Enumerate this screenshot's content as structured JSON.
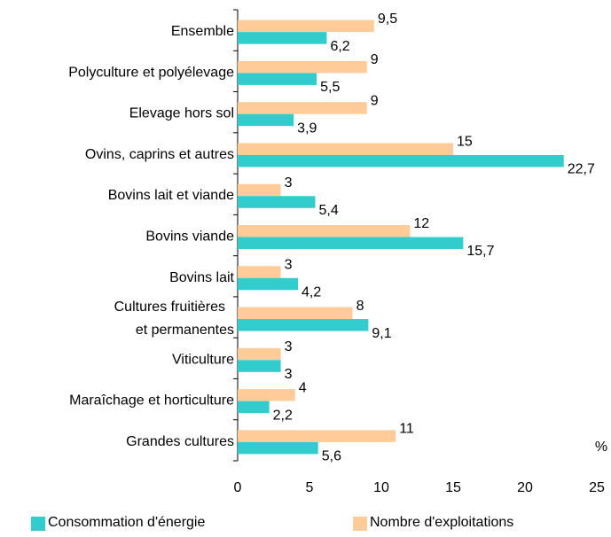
{
  "chart_data": {
    "type": "hbar",
    "xlabel": "%",
    "categories": [
      "Ensemble",
      "Polyculture et polyélevage",
      "Elevage hors sol",
      "Ovins, caprins et autres",
      "Bovins lait et viande",
      "Bovins viande",
      "Bovins lait",
      "Cultures fruitières\net permanentes",
      "Viticulture",
      "Maraîchage et horticulture",
      "Grandes cultures"
    ],
    "series": [
      {
        "name": "Nombre d'exploitations",
        "color": "#ffcc99",
        "values": [
          9.5,
          9,
          9,
          15,
          3,
          12,
          3,
          8,
          3,
          4,
          11
        ],
        "value_labels": [
          "9,5",
          "9",
          "9",
          "15",
          "3",
          "12",
          "3",
          "8",
          "3",
          "4",
          "11"
        ]
      },
      {
        "name": "Consommation d'énergie",
        "color": "#33cccc",
        "values": [
          6.2,
          5.5,
          3.9,
          22.7,
          5.4,
          15.7,
          4.2,
          9.1,
          3,
          2.2,
          5.6
        ],
        "value_labels": [
          "6,2",
          "5,5",
          "3,9",
          "22,7",
          "5,4",
          "15,7",
          "4,2",
          "9,1",
          "3",
          "2,2",
          "5,6"
        ]
      }
    ],
    "xlim": [
      0,
      25
    ],
    "xticks": [
      0,
      5,
      10,
      15,
      20,
      25
    ],
    "legend": "bottom"
  }
}
